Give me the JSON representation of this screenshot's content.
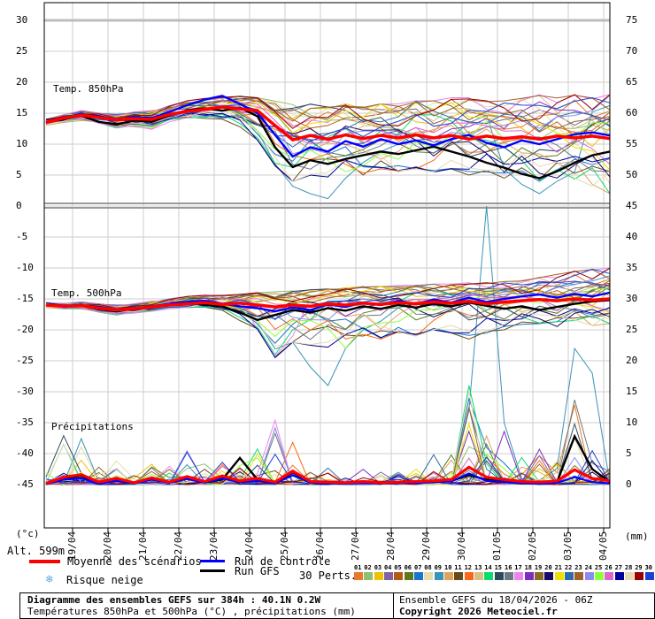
{
  "axes": {
    "left_unit": "(°c)",
    "right_unit": "(mm)",
    "left_ticks": [
      30,
      25,
      20,
      15,
      10,
      5,
      0,
      -5,
      -10,
      -15,
      -20,
      -25,
      -30,
      -35,
      -40,
      -45
    ],
    "right_ticks": [
      75,
      70,
      65,
      60,
      55,
      50,
      45,
      40,
      35,
      30,
      25,
      20,
      15,
      10,
      5,
      0
    ],
    "x_labels": [
      "19/04",
      "20/04",
      "21/04",
      "22/04",
      "23/04",
      "24/04",
      "25/04",
      "26/04",
      "27/04",
      "28/04",
      "29/04",
      "30/04",
      "01/05",
      "02/05",
      "03/05",
      "04/05"
    ]
  },
  "panels": {
    "t850_label": "Temp. 850hPa",
    "t500_label": "Temp. 500hPa",
    "precip_label": "Précipitations"
  },
  "legend": {
    "alt": "Alt. 599m",
    "mean_label": "Moyenne des scénarios",
    "control_label": "Run de contrôle",
    "gfs_label": "Run GFS",
    "perts_label": "30 Perts.",
    "snow_label": "Risque neige",
    "snow_icon": "❄",
    "mean_color": "#ff0000",
    "control_color": "#0000ff",
    "gfs_color": "#000000",
    "member_ids": [
      "01",
      "02",
      "03",
      "04",
      "05",
      "06",
      "07",
      "08",
      "09",
      "10",
      "11",
      "12",
      "13",
      "14",
      "15",
      "16",
      "17",
      "18",
      "19",
      "20",
      "21",
      "22",
      "23",
      "24",
      "25",
      "26",
      "27",
      "28",
      "29",
      "30"
    ],
    "member_colors": [
      "#e8792a",
      "#8fbf6f",
      "#edc001",
      "#8064a2",
      "#b55a13",
      "#5b7a1e",
      "#1874cd",
      "#e6dcac",
      "#3a93b8",
      "#e0a35c",
      "#6b4a1b",
      "#f96718",
      "#d3c188",
      "#0fd96e",
      "#2e4a5a",
      "#6a7a84",
      "#ee82ee",
      "#7b2fbe",
      "#8a6a2a",
      "#1a0a66",
      "#ede000",
      "#2e6da4",
      "#a0622a",
      "#8c8cf0",
      "#8cff3c",
      "#dd66cc",
      "#000099",
      "#e6d9b3",
      "#990000",
      "#1f3fcf"
    ]
  },
  "footer": {
    "title": "Diagramme des ensembles GEFS sur 384h : 40.1N 0.2W",
    "subtitle": "Températures 850hPa et 500hPa (°C) , précipitations (mm)",
    "run_info": "Ensemble GEFS du 18/04/2026 - 06Z",
    "copyright": "Copyright 2026 Meteociel.fr"
  },
  "chart_data": {
    "type": "line",
    "title": "Diagramme des ensembles GEFS sur 384h : 40.1N 0.2W",
    "x_start": "18/04 06Z",
    "x_end": "04/05 06Z",
    "x_hours_step": 12,
    "left_axis_range": [
      -45,
      30
    ],
    "right_axis_range": [
      0,
      75
    ],
    "grid": true,
    "legend_position": "bottom",
    "series": {
      "mean850": [
        13.5,
        14.2,
        14.7,
        14.3,
        13.9,
        14.1,
        14.0,
        14.8,
        15.3,
        15.6,
        16.0,
        15.7,
        15.4,
        13.0,
        10.7,
        11.4,
        10.8,
        11.5,
        10.9,
        11.4,
        11.0,
        11.5,
        11.0,
        11.4,
        10.8,
        11.3,
        10.9,
        11.2,
        10.8,
        11.3,
        11.0,
        11.3,
        10.9
      ],
      "control850": [
        13.4,
        14.3,
        14.9,
        14.2,
        13.8,
        14.4,
        14.2,
        15.2,
        16.3,
        17.2,
        17.8,
        16.5,
        15.0,
        11.5,
        8.0,
        9.5,
        8.8,
        10.5,
        9.6,
        10.8,
        10.0,
        10.6,
        9.8,
        10.8,
        11.5,
        10.2,
        9.5,
        10.6,
        10.0,
        10.8,
        11.6,
        11.9,
        11.4
      ],
      "gfs850": [
        13.5,
        14.0,
        14.6,
        13.6,
        13.2,
        13.8,
        13.6,
        14.6,
        15.5,
        15.8,
        15.4,
        15.9,
        14.5,
        9.5,
        6.3,
        7.4,
        6.8,
        7.6,
        8.2,
        8.8,
        8.4,
        9.0,
        9.6,
        8.8,
        8.0,
        7.0,
        6.2,
        5.2,
        4.5,
        5.6,
        7.0,
        8.2,
        8.8
      ],
      "mean500": [
        -16.0,
        -16.2,
        -16.1,
        -16.5,
        -16.8,
        -16.6,
        -16.3,
        -16.0,
        -15.8,
        -15.6,
        -15.9,
        -15.7,
        -16.0,
        -16.3,
        -16.0,
        -16.2,
        -15.8,
        -16.0,
        -15.7,
        -15.9,
        -15.6,
        -15.8,
        -15.5,
        -15.7,
        -15.4,
        -15.8,
        -15.5,
        -15.3,
        -15.1,
        -15.3,
        -15.0,
        -15.2,
        -15.0
      ],
      "control500": [
        -16.0,
        -16.1,
        -16.0,
        -16.6,
        -16.9,
        -16.5,
        -16.2,
        -15.8,
        -15.5,
        -15.3,
        -15.8,
        -16.2,
        -16.5,
        -17.0,
        -16.4,
        -16.8,
        -15.9,
        -16.3,
        -15.6,
        -16.0,
        -15.3,
        -15.9,
        -15.1,
        -15.6,
        -14.8,
        -15.5,
        -15.0,
        -14.6,
        -14.3,
        -14.8,
        -14.2,
        -14.6,
        -14.0
      ],
      "gfs500": [
        -16.0,
        -16.2,
        -16.0,
        -16.7,
        -17.0,
        -16.6,
        -16.4,
        -16.0,
        -15.7,
        -15.9,
        -16.2,
        -17.2,
        -18.4,
        -17.6,
        -16.8,
        -17.2,
        -16.5,
        -16.9,
        -16.2,
        -16.6,
        -16.0,
        -16.4,
        -15.8,
        -16.2,
        -15.6,
        -16.1,
        -16.6,
        -16.2,
        -16.8,
        -16.3,
        -15.8,
        -15.4,
        -15.2
      ],
      "mean_precip": [
        0.2,
        1.2,
        1.6,
        0.4,
        1.0,
        0.3,
        1.1,
        0.4,
        1.3,
        0.5,
        1.4,
        0.6,
        1.0,
        0.4,
        2.2,
        0.5,
        0.4,
        0.3,
        0.5,
        0.3,
        0.4,
        0.5,
        0.6,
        0.8,
        2.8,
        1.2,
        0.8,
        0.5,
        0.4,
        0.6,
        2.4,
        1.0,
        0.6
      ],
      "control_precip": [
        0.1,
        0.8,
        1.0,
        0.2,
        0.6,
        0.2,
        0.8,
        0.3,
        0.9,
        0.3,
        1.0,
        0.4,
        0.6,
        0.2,
        1.5,
        0.3,
        0.2,
        0.2,
        0.3,
        0.2,
        0.2,
        0.3,
        0.4,
        0.5,
        1.8,
        0.6,
        0.4,
        0.2,
        0.2,
        0.3,
        1.2,
        0.4,
        0.2
      ],
      "gfs_precip": [
        0.1,
        1.0,
        1.4,
        0.2,
        0.8,
        0.2,
        1.0,
        0.3,
        1.2,
        0.4,
        0.8,
        4.3,
        0.8,
        0.3,
        2.0,
        0.4,
        0.3,
        0.2,
        0.4,
        0.2,
        0.3,
        0.4,
        0.5,
        0.6,
        1.5,
        0.8,
        0.5,
        0.3,
        0.2,
        0.4,
        7.8,
        2.5,
        0.4
      ]
    },
    "ensemble": {
      "member_count": 30,
      "envelope850": [
        [
          13.0,
          14.2
        ],
        [
          13.4,
          15.0
        ],
        [
          13.8,
          15.4
        ],
        [
          13.2,
          15.0
        ],
        [
          12.6,
          14.8
        ],
        [
          12.8,
          15.2
        ],
        [
          12.4,
          15.4
        ],
        [
          13.6,
          16.2
        ],
        [
          14.2,
          17.0
        ],
        [
          14.0,
          17.4
        ],
        [
          13.6,
          17.6
        ],
        [
          12.8,
          17.8
        ],
        [
          10.5,
          17.5
        ],
        [
          6.5,
          17.0
        ],
        [
          4.0,
          16.5
        ],
        [
          5.0,
          16.5
        ],
        [
          4.5,
          16.0
        ],
        [
          5.5,
          16.5
        ],
        [
          5.0,
          16.0
        ],
        [
          6.0,
          16.5
        ],
        [
          5.5,
          16.5
        ],
        [
          6.0,
          17.0
        ],
        [
          5.5,
          17.0
        ],
        [
          6.0,
          17.5
        ],
        [
          5.0,
          17.5
        ],
        [
          5.5,
          17.0
        ],
        [
          4.5,
          17.0
        ],
        [
          5.0,
          17.5
        ],
        [
          4.0,
          18.0
        ],
        [
          4.5,
          17.5
        ],
        [
          3.5,
          18.0
        ],
        [
          3.0,
          17.5
        ],
        [
          2.0,
          18.0
        ]
      ],
      "envelope500": [
        [
          -16.4,
          -15.6
        ],
        [
          -16.6,
          -15.6
        ],
        [
          -16.6,
          -15.5
        ],
        [
          -17.2,
          -15.8
        ],
        [
          -17.6,
          -16.0
        ],
        [
          -17.3,
          -15.8
        ],
        [
          -17.0,
          -15.4
        ],
        [
          -16.6,
          -15.0
        ],
        [
          -16.4,
          -14.6
        ],
        [
          -16.5,
          -14.4
        ],
        [
          -17.0,
          -14.4
        ],
        [
          -18.5,
          -14.2
        ],
        [
          -20.0,
          -14.0
        ],
        [
          -24.5,
          -13.8
        ],
        [
          -22.0,
          -13.6
        ],
        [
          -22.5,
          -13.5
        ],
        [
          -23.0,
          -13.4
        ],
        [
          -23.0,
          -13.2
        ],
        [
          -21.0,
          -13.0
        ],
        [
          -21.5,
          -13.0
        ],
        [
          -20.5,
          -12.8
        ],
        [
          -21.0,
          -12.8
        ],
        [
          -20.0,
          -12.6
        ],
        [
          -20.5,
          -12.6
        ],
        [
          -21.5,
          -12.4
        ],
        [
          -20.5,
          -12.4
        ],
        [
          -20.0,
          -12.2
        ],
        [
          -19.5,
          -12.0
        ],
        [
          -19.0,
          -11.5
        ],
        [
          -19.5,
          -11.0
        ],
        [
          -19.0,
          -10.5
        ],
        [
          -19.5,
          -10.2
        ],
        [
          -19.0,
          -10.0
        ]
      ],
      "precip_member_max": [
        2,
        7,
        8,
        3,
        6,
        3,
        6,
        3,
        6,
        4,
        6,
        4,
        7,
        10,
        8,
        4,
        3,
        2,
        2.5,
        2,
        2.5,
        3,
        5,
        6,
        16,
        8,
        9,
        5,
        6,
        4,
        14,
        8,
        3
      ],
      "outliers": {
        "t850": {
          "8": {
            "13": 6.8,
            "14": 3.2,
            "15": 2.0,
            "16": 1.2,
            "17": 4.5,
            "26": 6.0,
            "27": 3.5,
            "28": 2.0,
            "29": 4.0,
            "30": 5.5
          }
        },
        "t500": {
          "8": {
            "14": -22.0,
            "15": -26.0,
            "16": -29.0,
            "17": -23.0,
            "18": -20.0
          },
          "16": {
            "12": -20.0,
            "13": -24.3,
            "14": -21.0
          },
          "13": {
            "13": -24.0
          }
        },
        "precip": {
          "8": {
            "24": 12.0,
            "25": 45.0,
            "26": 10.0,
            "30": 22.0,
            "31": 18.0
          },
          "13": {
            "24": 16.0
          },
          "16": {
            "13": 10.4
          },
          "17": {
            "24": 8.6,
            "26": 8.6,
            "28": 5.7
          },
          "15": {
            "30": 13.7
          },
          "14": {
            "1": 7.9
          }
        }
      }
    }
  }
}
